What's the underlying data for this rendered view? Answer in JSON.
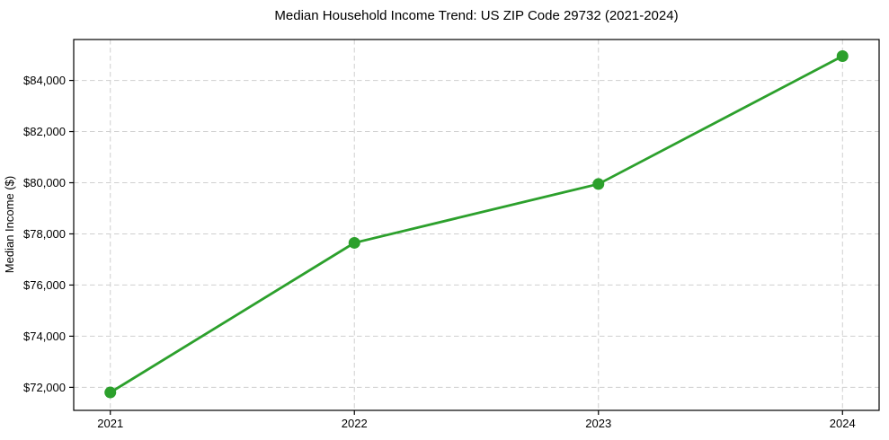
{
  "chart_data": {
    "type": "line",
    "title": "Median Household Income Trend: US ZIP Code 29732 (2021-2024)",
    "xlabel": "",
    "ylabel": "Median Income ($)",
    "x": [
      2021,
      2022,
      2023,
      2024
    ],
    "xtick_labels": [
      "2021",
      "2022",
      "2023",
      "2024"
    ],
    "series": [
      {
        "name": "Median Household Income",
        "values": [
          71800,
          77650,
          79950,
          84950
        ]
      }
    ],
    "yticks": [
      72000,
      74000,
      76000,
      78000,
      80000,
      82000,
      84000
    ],
    "ytick_labels": [
      "$72,000",
      "$74,000",
      "$76,000",
      "$78,000",
      "$80,000",
      "$82,000",
      "$84,000"
    ],
    "xlim": [
      2020.85,
      2024.15
    ],
    "ylim": [
      71100,
      85600
    ],
    "grid": true,
    "grid_style": "dashed",
    "grid_color": "#cfcfcf",
    "line_color": "#2ca02c",
    "marker": "circle",
    "spine_color": "#000000",
    "background_color": "#ffffff",
    "legend_position": "none"
  }
}
